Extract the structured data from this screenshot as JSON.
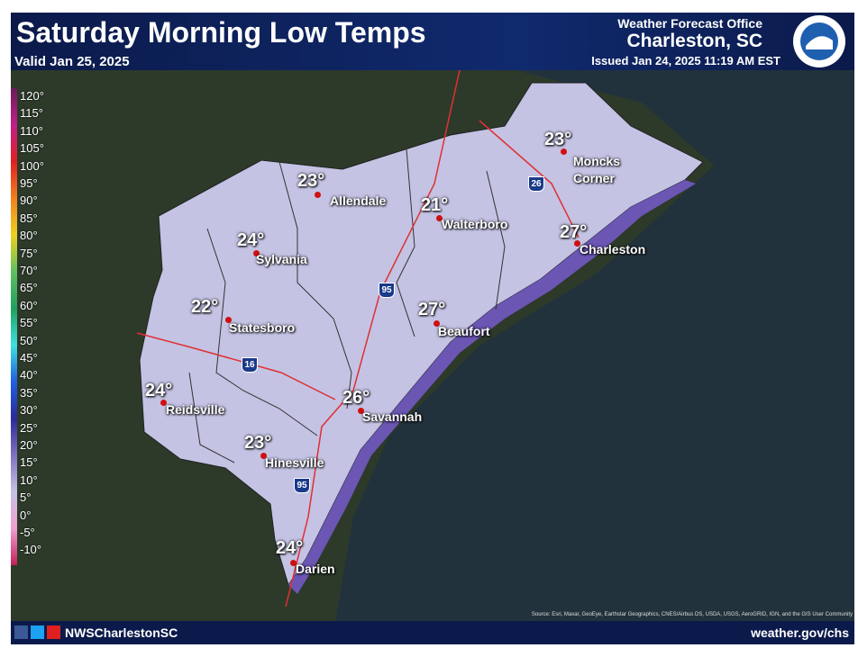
{
  "header": {
    "title": "Saturday Morning Low Temps",
    "valid": "Valid Jan 25, 2025",
    "office": "Weather Forecast Office",
    "location": "Charleston, SC",
    "issued": "Issued Jan 24, 2025 11:19 AM EST"
  },
  "legend": [
    "120°",
    "115°",
    "110°",
    "105°",
    "100°",
    "95°",
    "90°",
    "85°",
    "80°",
    "75°",
    "70°",
    "65°",
    "60°",
    "55°",
    "50°",
    "45°",
    "40°",
    "35°",
    "30°",
    "25°",
    "20°",
    "15°",
    "10°",
    "5°",
    "0°",
    "-5°",
    "-10°"
  ],
  "cities": [
    {
      "temp": "23°",
      "name": "Moncks Corner"
    },
    {
      "temp": "23°",
      "name": "Allendale"
    },
    {
      "temp": "21°",
      "name": "Walterboro"
    },
    {
      "temp": "27°",
      "name": "Charleston"
    },
    {
      "temp": "24°",
      "name": "Sylvania"
    },
    {
      "temp": "22°",
      "name": "Statesboro"
    },
    {
      "temp": "27°",
      "name": "Beaufort"
    },
    {
      "temp": "26°",
      "name": "Savannah"
    },
    {
      "temp": "24°",
      "name": "Reidsville"
    },
    {
      "temp": "23°",
      "name": "Hinesville"
    },
    {
      "temp": "24°",
      "name": "Darien"
    }
  ],
  "shields": [
    "26",
    "95",
    "16",
    "95"
  ],
  "source": "Source: Esri, Maxar, GeoEye, Earthstar Geographics, CNES/Airbus DS, USDA, USGS, AeroGRID, IGN, and the GIS User Community",
  "footer": {
    "social": "NWSCharlestonSC",
    "url": "weather.gov/chs"
  }
}
